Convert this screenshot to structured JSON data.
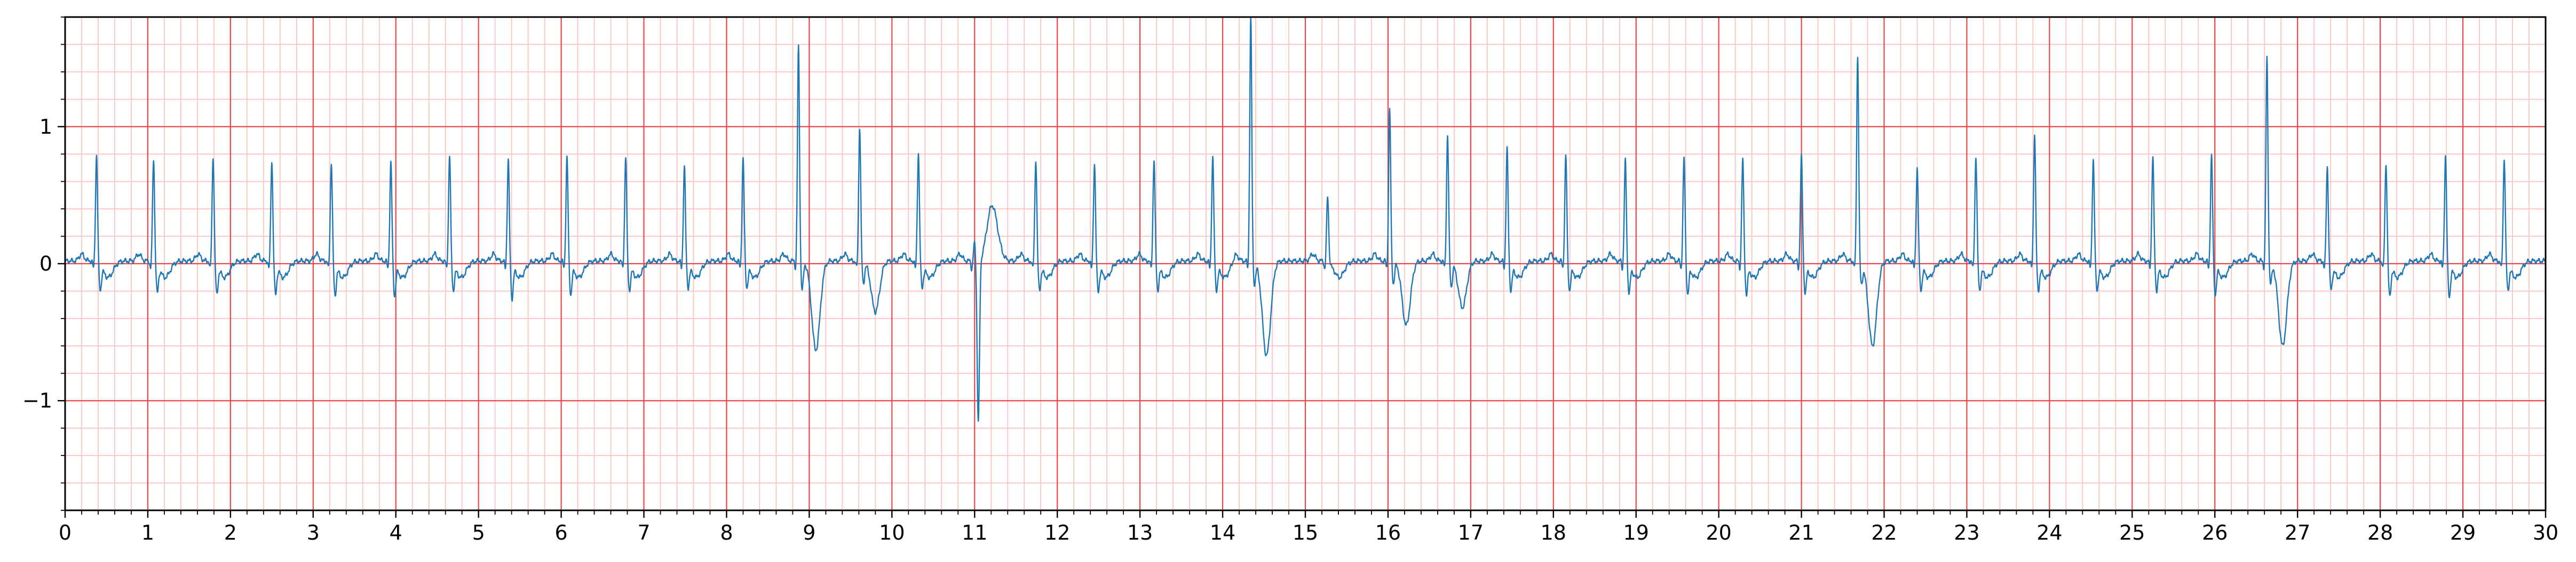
{
  "chart_data": {
    "type": "line",
    "title": "",
    "xlabel": "",
    "ylabel": "",
    "xlim": [
      0,
      30
    ],
    "ylim": [
      -1.8,
      1.8
    ],
    "grid": true,
    "major_grid_color": "#e8464a",
    "minor_grid_color": "#ffbdbd",
    "frame_color": "#000000",
    "x_major_ticks": [
      0,
      1,
      2,
      3,
      4,
      5,
      6,
      7,
      8,
      9,
      10,
      11,
      12,
      13,
      14,
      15,
      16,
      17,
      18,
      19,
      20,
      21,
      22,
      23,
      24,
      25,
      26,
      27,
      28,
      29,
      30
    ],
    "x_tick_labels": [
      "0",
      "1",
      "2",
      "3",
      "4",
      "5",
      "6",
      "7",
      "8",
      "9",
      "10",
      "11",
      "12",
      "13",
      "14",
      "15",
      "16",
      "17",
      "18",
      "19",
      "20",
      "21",
      "22",
      "23",
      "24",
      "25",
      "26",
      "27",
      "28",
      "29",
      "30"
    ],
    "y_major_ticks": [
      -1,
      0,
      1
    ],
    "y_tick_labels": [
      "−1",
      "0",
      "1"
    ],
    "series": [
      {
        "color": "#1f77b4",
        "baseline": 0.02,
        "beats": [
          {
            "t": 0.38,
            "r": 0.8,
            "s": -0.22
          },
          {
            "t": 1.07,
            "r": 0.77,
            "s": -0.24
          },
          {
            "t": 1.79,
            "r": 0.79,
            "s": -0.25
          },
          {
            "t": 2.5,
            "r": 0.76,
            "s": -0.25
          },
          {
            "t": 3.22,
            "r": 0.75,
            "s": -0.26
          },
          {
            "t": 3.94,
            "r": 0.75,
            "s": -0.26
          },
          {
            "t": 4.65,
            "r": 0.8,
            "s": -0.22
          },
          {
            "t": 5.36,
            "r": 0.77,
            "s": -0.28
          },
          {
            "t": 6.07,
            "r": 0.79,
            "s": -0.25
          },
          {
            "t": 6.78,
            "r": 0.79,
            "s": -0.22
          },
          {
            "t": 7.49,
            "r": 0.72,
            "s": -0.2
          },
          {
            "t": 8.2,
            "r": 0.78,
            "s": -0.2
          },
          {
            "t": 8.87,
            "r": 1.58,
            "s": -0.25,
            "ectopic": true,
            "dip": -0.63,
            "dipT": 9.08
          },
          {
            "t": 9.61,
            "r": 1.0,
            "s": -0.2,
            "ectopic": true,
            "dip": -0.35,
            "dipT": 9.8
          },
          {
            "t": 10.32,
            "r": 0.82,
            "s": -0.2
          },
          {
            "t": 11.0,
            "r": 0.15,
            "s": -1.22,
            "tHump": 0.49,
            "tHumpT": 11.2
          },
          {
            "t": 11.74,
            "r": 0.77,
            "s": -0.22
          },
          {
            "t": 12.45,
            "r": 0.74,
            "s": -0.23
          },
          {
            "t": 13.17,
            "r": 0.77,
            "s": -0.22
          },
          {
            "t": 13.88,
            "r": 0.79,
            "s": -0.22
          },
          {
            "t": 14.34,
            "r": 1.8,
            "s": -0.2,
            "ectopic": true,
            "dip": -0.67,
            "dipT": 14.53
          },
          {
            "t": 15.27,
            "r": 0.5,
            "s": -0.05
          },
          {
            "t": 16.02,
            "r": 1.13,
            "s": -0.2,
            "ectopic": true,
            "dip": -0.45,
            "dipT": 16.22
          },
          {
            "t": 16.72,
            "r": 0.94,
            "s": -0.22,
            "ectopic": true,
            "dip": -0.32,
            "dipT": 16.9
          },
          {
            "t": 17.44,
            "r": 0.85,
            "s": -0.22
          },
          {
            "t": 18.15,
            "r": 0.8,
            "s": -0.22
          },
          {
            "t": 18.87,
            "r": 0.76,
            "s": -0.24
          },
          {
            "t": 19.58,
            "r": 0.78,
            "s": -0.25
          },
          {
            "t": 20.29,
            "r": 0.77,
            "s": -0.25
          },
          {
            "t": 21.0,
            "r": 0.79,
            "s": -0.24
          },
          {
            "t": 21.68,
            "r": 1.52,
            "s": -0.2,
            "ectopic": true,
            "dip": -0.6,
            "dipT": 21.86
          },
          {
            "t": 22.4,
            "r": 0.71,
            "s": -0.22
          },
          {
            "t": 23.11,
            "r": 0.79,
            "s": -0.22
          },
          {
            "t": 23.82,
            "r": 0.96,
            "s": -0.22
          },
          {
            "t": 24.53,
            "r": 0.77,
            "s": -0.22
          },
          {
            "t": 25.25,
            "r": 0.79,
            "s": -0.22
          },
          {
            "t": 25.96,
            "r": 0.8,
            "s": -0.25
          },
          {
            "t": 26.63,
            "r": 1.5,
            "s": -0.2,
            "ectopic": true,
            "dip": -0.6,
            "dipT": 26.82
          },
          {
            "t": 27.36,
            "r": 0.72,
            "s": -0.22
          },
          {
            "t": 28.07,
            "r": 0.74,
            "s": -0.27
          },
          {
            "t": 28.79,
            "r": 0.8,
            "s": -0.27
          },
          {
            "t": 29.5,
            "r": 0.78,
            "s": -0.22
          }
        ]
      }
    ]
  }
}
